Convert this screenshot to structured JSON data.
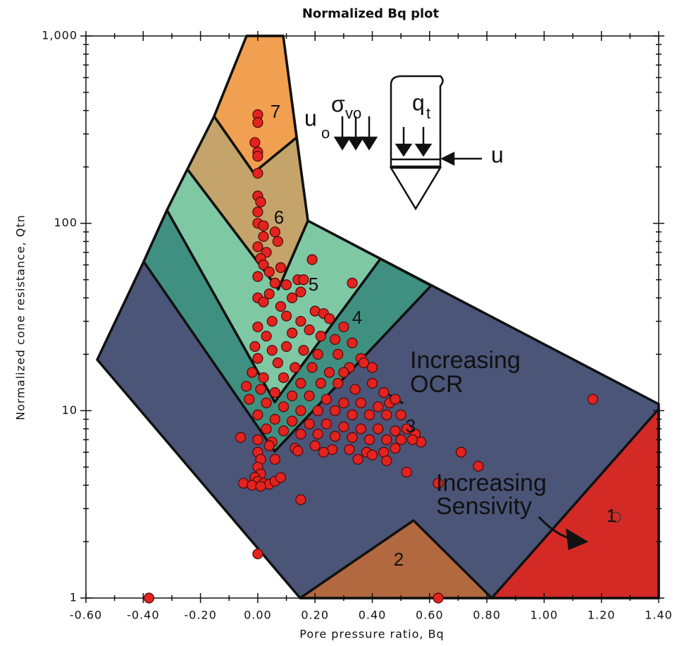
{
  "chart_data": {
    "type": "scatter",
    "title": "Normalized Bq plot",
    "x_label": "Pore pressure ratio, Bq",
    "y_label": "Normalized cone resistance, Qtn",
    "log_y": true,
    "color": "#e3231f",
    "xlim": [
      -0.6,
      1.4
    ],
    "xticks": [
      {
        "value": -0.6,
        "label": "-0.60"
      },
      {
        "value": -0.4,
        "label": "-0.40"
      },
      {
        "value": -0.2,
        "label": "-0.20"
      },
      {
        "value": 0,
        "label": "0.00"
      },
      {
        "value": 0.2,
        "label": "0.20"
      },
      {
        "value": 0.4,
        "label": "0.40"
      },
      {
        "value": 0.6,
        "label": "0.60"
      },
      {
        "value": 0.8,
        "label": "0.80"
      },
      {
        "value": 1.0,
        "label": "1.00"
      },
      {
        "value": 1.2,
        "label": "1.20"
      },
      {
        "value": 1.4,
        "label": "1.40"
      }
    ],
    "ylim": [
      1,
      1000
    ],
    "yticks": [
      1,
      10,
      100,
      {
        "value": 1000,
        "label": "1,000"
      }
    ],
    "x": [
      0.0,
      0.0,
      -0.01,
      0.0,
      0.0,
      0.0,
      0.0,
      0.01,
      0.0,
      0.0,
      0.02,
      0.06,
      0.02,
      0.07,
      0.0,
      0.03,
      0.01,
      0.08,
      0.02,
      0.04,
      0.0,
      0.06,
      0.1,
      0.14,
      0.16,
      0.19,
      0.33,
      0.15,
      0.12,
      0.04,
      0.0,
      0.02,
      0.08,
      0.2,
      0.23,
      0.1,
      0.05,
      0.15,
      0.25,
      0.3,
      0.0,
      0.03,
      0.12,
      0.18,
      0.22,
      0.27,
      0.33,
      -0.01,
      0.05,
      0.1,
      0.16,
      0.21,
      0.28,
      0.36,
      0.32,
      0.37,
      0.4,
      0.0,
      0.07,
      0.13,
      0.19,
      0.25,
      0.3,
      -0.02,
      0.02,
      0.09,
      0.15,
      0.22,
      0.28,
      0.34,
      0.4,
      0.44,
      -0.04,
      0.01,
      0.06,
      0.12,
      0.18,
      0.24,
      0.3,
      0.36,
      0.42,
      0.46,
      0.48,
      -0.03,
      0.03,
      0.09,
      0.15,
      0.21,
      0.27,
      0.33,
      0.39,
      0.45,
      0.5,
      0.0,
      0.06,
      0.12,
      0.18,
      0.24,
      0.3,
      0.36,
      0.42,
      0.48,
      0.52,
      0.55,
      0.57,
      0.03,
      0.09,
      0.15,
      0.21,
      0.27,
      0.33,
      0.39,
      0.45,
      0.5,
      0.54,
      -0.06,
      0.0,
      0.05,
      0.13,
      0.2,
      0.26,
      0.32,
      0.38,
      0.44,
      0.48,
      0.23,
      0.14,
      0.35,
      0.45,
      0.4,
      0.52,
      0.0,
      0.01,
      0.0,
      0.01,
      -0.01,
      0.0,
      0.02,
      0.04,
      0.06,
      0.08,
      -0.05,
      -0.02,
      0.01,
      0.04,
      0.06,
      -0.38,
      0.0,
      0.15,
      0.63,
      0.63,
      0.71,
      0.77,
      1.17
    ],
    "values": [
      380,
      345,
      270,
      240,
      228,
      185,
      140,
      130,
      115,
      100,
      97,
      90,
      85,
      80,
      75,
      70,
      65,
      58,
      60,
      55,
      52,
      48,
      47,
      50,
      50,
      64,
      48,
      43,
      40,
      42,
      40,
      38,
      36,
      34,
      33,
      32,
      30,
      30,
      31,
      28,
      28,
      25,
      26,
      27,
      25,
      24,
      23,
      22,
      21,
      22,
      21,
      20,
      20,
      19,
      17,
      18,
      17,
      19,
      18,
      17,
      17,
      16,
      16,
      16,
      15,
      15,
      14,
      14,
      14,
      13,
      14,
      12.5,
      13.5,
      13,
      12.5,
      12,
      12,
      11.5,
      11,
      11,
      10.5,
      11,
      11.5,
      11.5,
      11,
      10.5,
      10,
      10,
      10,
      9.5,
      9.5,
      9.5,
      9.5,
      9.5,
      9,
      8.8,
      8.5,
      8.5,
      8.2,
      8,
      8,
      7.8,
      8,
      7.5,
      6.8,
      8,
      7.8,
      7.5,
      7.5,
      7.3,
      7.2,
      7,
      7,
      7,
      7,
      7.2,
      7,
      6.8,
      6.3,
      6.5,
      6.2,
      6.2,
      6,
      6,
      6.3,
      6,
      6.1,
      5.5,
      5.4,
      5.8,
      4.7,
      6,
      5.5,
      5,
      4.6,
      4.4,
      4.2,
      4.1,
      4.05,
      4.2,
      4.4,
      4.1,
      4.0,
      3.95,
      6.5,
      5.5,
      1.0,
      1.72,
      3.35,
      4.1,
      1.0,
      6.0,
      5.05,
      11.5
    ],
    "hollow_points": {
      "x": [
        1.25
      ],
      "values": [
        2.7
      ]
    },
    "zone_labels": [
      "1",
      "2",
      "3",
      "4",
      "5",
      "6",
      "7"
    ],
    "ocr_note": [
      "Increasing",
      "OCR"
    ],
    "sensitivity_note": [
      "Increasing",
      "Sensivity"
    ],
    "probe_labels": [
      "u",
      "o",
      "σ",
      "vo",
      "q",
      "t",
      "u"
    ]
  }
}
